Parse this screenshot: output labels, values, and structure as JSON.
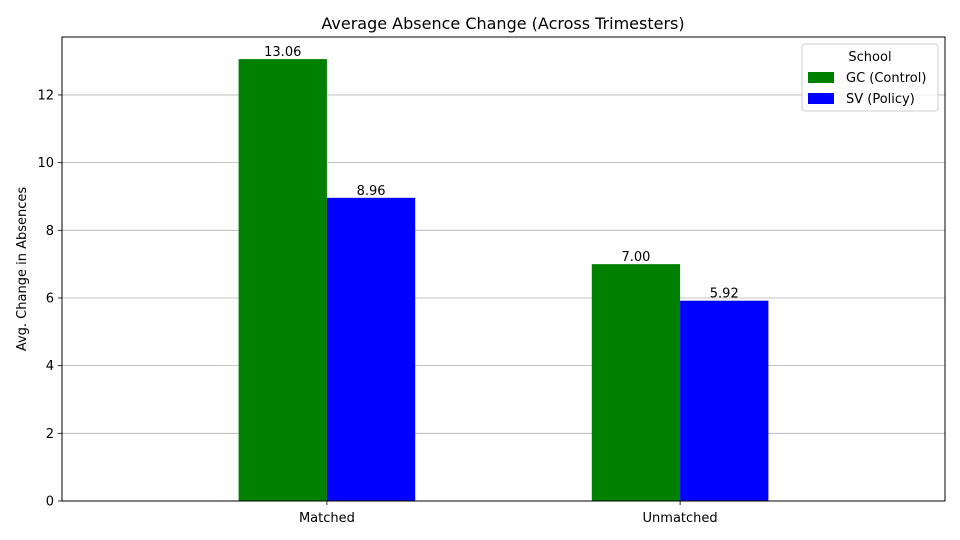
{
  "chart_data": {
    "type": "bar",
    "title": "Average Absence Change (Across Trimesters)",
    "xlabel": "",
    "ylabel": "Avg. Change in Absences",
    "categories": [
      "Matched",
      "Unmatched"
    ],
    "series": [
      {
        "name": "GC (Control)",
        "values": [
          13.06,
          7.0
        ],
        "labels": [
          "13.06",
          "7.00"
        ],
        "color": "#008000"
      },
      {
        "name": "SV (Policy)",
        "values": [
          8.96,
          5.92
        ],
        "labels": [
          "8.96",
          "5.92"
        ],
        "color": "#0000ff"
      }
    ],
    "yticks": [
      0,
      2,
      4,
      6,
      8,
      10,
      12
    ],
    "ylim": [
      0,
      13.713
    ],
    "grid": "y",
    "legend": {
      "title": "School",
      "position": "top-right"
    }
  }
}
